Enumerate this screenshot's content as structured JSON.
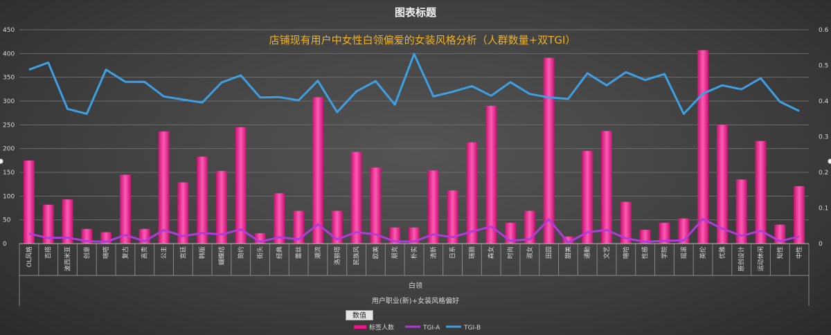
{
  "chart_data": {
    "type": "bar+line",
    "title": "图表标题",
    "subtitle": "店铺现有用户中女性白领偏爱的女装风格分析（人群数量+双TGI）",
    "categories": [
      "OL风格",
      "百搭",
      "波西米亚",
      "创意",
      "嘀嗒",
      "复古",
      "高贵",
      "公主",
      "宫廷",
      "韩版",
      "蝴蝶结",
      "简约",
      "街头",
      "经典",
      "蕾丝",
      "潮流",
      "洛丽塔",
      "民族风",
      "欧美",
      "朋克",
      "朴实",
      "清新",
      "日系",
      "瑞丽",
      "森女",
      "时尚",
      "淑女",
      "田园",
      "甜美",
      "通勤",
      "文艺",
      "嘻哈",
      "性感",
      "学院",
      "摇滚",
      "英伦",
      "优雅",
      "原创设计",
      "运动休闲",
      "知性",
      "中性"
    ],
    "group_label": "白领",
    "axis_title": "用户职业(新)+女装风格偏好",
    "y_left": {
      "min": 0,
      "max": 450,
      "ticks": [
        "0",
        "50",
        "100",
        "150",
        "200",
        "250",
        "300",
        "350",
        "400",
        "450"
      ]
    },
    "y_right": {
      "min": 0,
      "max": 0.6,
      "ticks": [
        "0",
        "0.1",
        "0.2",
        "0.3",
        "0.4",
        "0.5",
        "0.6"
      ]
    },
    "series": [
      {
        "name": "标签人数",
        "type": "bar",
        "axis": "left",
        "values": [
          175,
          82,
          93,
          31,
          24,
          145,
          31,
          236,
          129,
          183,
          153,
          245,
          22,
          106,
          69,
          308,
          69,
          193,
          160,
          34,
          34,
          154,
          112,
          213,
          290,
          44,
          69,
          391,
          15,
          195,
          237,
          88,
          29,
          44,
          53,
          407,
          250,
          135,
          216,
          40,
          121
        ]
      },
      {
        "name": "TGI-A",
        "type": "line",
        "axis": "right",
        "values": [
          0.028,
          0.016,
          0.017,
          0.007,
          0.005,
          0.024,
          0.007,
          0.038,
          0.021,
          0.03,
          0.026,
          0.04,
          0.005,
          0.018,
          0.012,
          0.054,
          0.012,
          0.032,
          0.026,
          0.006,
          0.006,
          0.026,
          0.018,
          0.034,
          0.048,
          0.008,
          0.012,
          0.068,
          0.003,
          0.032,
          0.038,
          0.015,
          0.005,
          0.008,
          0.009,
          0.069,
          0.042,
          0.022,
          0.036,
          0.007,
          0.02
        ]
      },
      {
        "name": "TGI-B",
        "type": "line",
        "axis": "right",
        "values": [
          0.488,
          0.508,
          0.378,
          0.364,
          0.488,
          0.454,
          0.454,
          0.413,
          0.404,
          0.396,
          0.452,
          0.472,
          0.41,
          0.411,
          0.402,
          0.457,
          0.369,
          0.427,
          0.456,
          0.39,
          0.532,
          0.413,
          0.426,
          0.442,
          0.415,
          0.453,
          0.42,
          0.41,
          0.406,
          0.478,
          0.444,
          0.481,
          0.459,
          0.476,
          0.364,
          0.421,
          0.444,
          0.433,
          0.464,
          0.398,
          0.372
        ]
      }
    ],
    "colors": {
      "bar": "#e8198b",
      "tgi_a": "#b13bd8",
      "tgi_b": "#3f9fe3",
      "grid": "#6e6e6e",
      "title": "#f2f2f2",
      "subtitle": "#f2b21b"
    },
    "legend": {
      "position": "bottom",
      "field_button": "数值"
    },
    "grid": true
  }
}
